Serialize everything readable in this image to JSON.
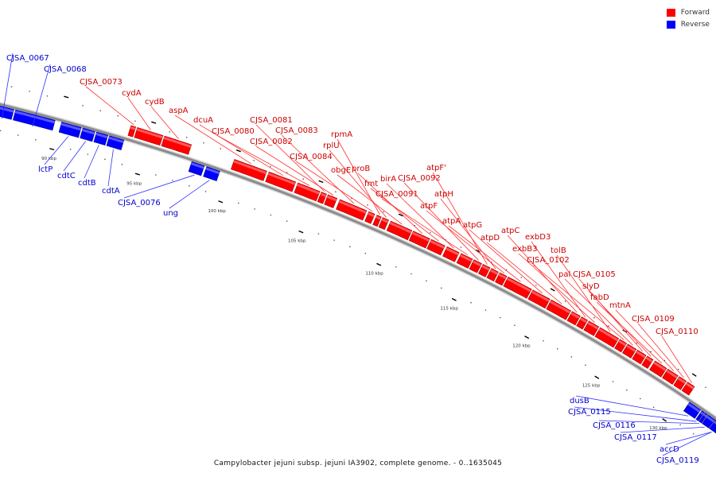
{
  "caption": "Campylobacter jejuni subsp. jejuni IA3902, complete genome. - 0..1635045",
  "legend": [
    {
      "label": "Forward",
      "color": "#ff0000"
    },
    {
      "label": "Reverse",
      "color": "#0000ff"
    }
  ],
  "colors": {
    "forward": "#ff0000",
    "forward_label": "#cc0000",
    "reverse": "#0000ff",
    "reverse_label": "#0000cc",
    "backbone": "#8c8c8c"
  },
  "ticks": [
    {
      "kbp": 90,
      "label": "90 kbp"
    },
    {
      "kbp": 95,
      "label": "95 kbp"
    },
    {
      "kbp": 100,
      "label": "100 kbp"
    },
    {
      "kbp": 105,
      "label": "105 kbp"
    },
    {
      "kbp": 110,
      "label": "110 kbp"
    },
    {
      "kbp": 115,
      "label": "115 kbp"
    },
    {
      "kbp": 120,
      "label": "120 kbp"
    },
    {
      "kbp": 125,
      "label": "125 kbp"
    },
    {
      "kbp": 130,
      "label": "130 kbp"
    }
  ],
  "genes": [
    {
      "name": "CJSA_0067",
      "strand": "reverse"
    },
    {
      "name": "CJSA_0068",
      "strand": "reverse"
    },
    {
      "name": "lctP",
      "strand": "reverse"
    },
    {
      "name": "cdtC",
      "strand": "reverse"
    },
    {
      "name": "cdtB",
      "strand": "reverse"
    },
    {
      "name": "cdtA",
      "strand": "reverse"
    },
    {
      "name": "CJSA_0073",
      "strand": "forward"
    },
    {
      "name": "cydA",
      "strand": "forward"
    },
    {
      "name": "cydB",
      "strand": "forward"
    },
    {
      "name": "CJSA_0076",
      "strand": "reverse"
    },
    {
      "name": "ung",
      "strand": "reverse"
    },
    {
      "name": "aspA",
      "strand": "forward"
    },
    {
      "name": "dcuA",
      "strand": "forward"
    },
    {
      "name": "CJSA_0080",
      "strand": "forward"
    },
    {
      "name": "CJSA_0081",
      "strand": "forward"
    },
    {
      "name": "CJSA_0082",
      "strand": "forward"
    },
    {
      "name": "CJSA_0083",
      "strand": "forward"
    },
    {
      "name": "CJSA_0084",
      "strand": "forward"
    },
    {
      "name": "rpmA",
      "strand": "forward"
    },
    {
      "name": "rplU",
      "strand": "forward"
    },
    {
      "name": "obgE",
      "strand": "forward"
    },
    {
      "name": "proB",
      "strand": "forward"
    },
    {
      "name": "fmt",
      "strand": "forward"
    },
    {
      "name": "birA",
      "strand": "forward"
    },
    {
      "name": "CJSA_0091",
      "strand": "forward"
    },
    {
      "name": "CJSA_0092",
      "strand": "forward"
    },
    {
      "name": "atpF'",
      "strand": "forward"
    },
    {
      "name": "atpH",
      "strand": "forward"
    },
    {
      "name": "atpF",
      "strand": "forward"
    },
    {
      "name": "atpA",
      "strand": "forward"
    },
    {
      "name": "atpG",
      "strand": "forward"
    },
    {
      "name": "atpD",
      "strand": "forward"
    },
    {
      "name": "atpC",
      "strand": "forward"
    },
    {
      "name": "exbD3",
      "strand": "forward"
    },
    {
      "name": "exbB3",
      "strand": "forward"
    },
    {
      "name": "tolB",
      "strand": "forward"
    },
    {
      "name": "CJSA_0102",
      "strand": "forward"
    },
    {
      "name": "pal",
      "strand": "forward"
    },
    {
      "name": "CJSA_0105",
      "strand": "forward"
    },
    {
      "name": "slyD",
      "strand": "forward"
    },
    {
      "name": "fabD",
      "strand": "forward"
    },
    {
      "name": "mtnA",
      "strand": "forward"
    },
    {
      "name": "CJSA_0109",
      "strand": "forward"
    },
    {
      "name": "CJSA_0110",
      "strand": "forward"
    },
    {
      "name": "dusB",
      "strand": "reverse"
    },
    {
      "name": "CJSA_0115",
      "strand": "reverse"
    },
    {
      "name": "CJSA_0116",
      "strand": "reverse"
    },
    {
      "name": "CJSA_0117",
      "strand": "reverse"
    },
    {
      "name": "accD",
      "strand": "reverse"
    },
    {
      "name": "CJSA_0119",
      "strand": "reverse"
    }
  ]
}
